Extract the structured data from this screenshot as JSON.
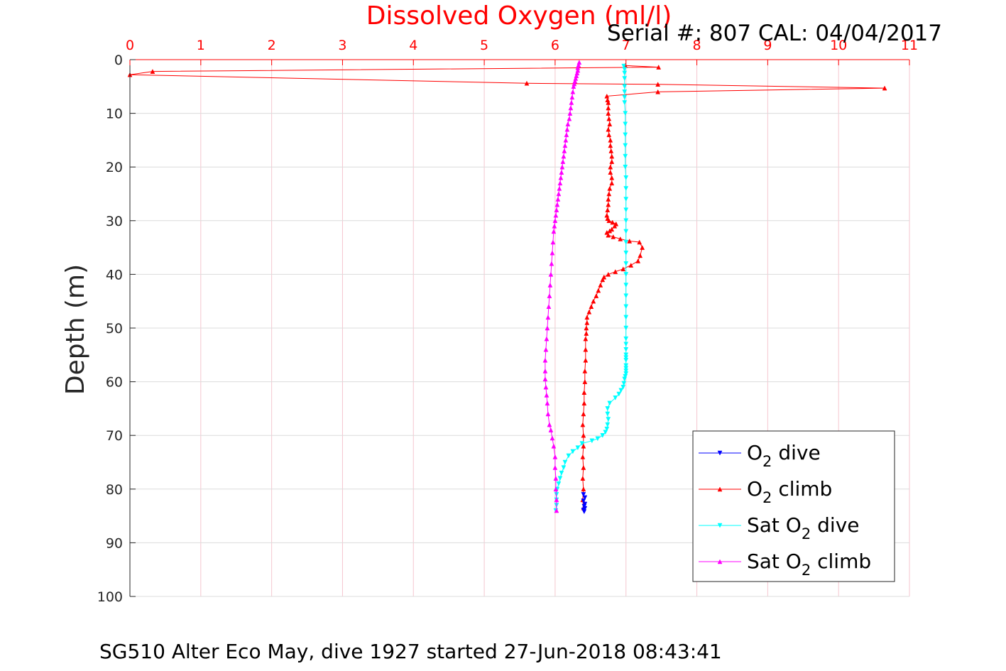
{
  "chart_data": {
    "type": "line",
    "title": "Dissolved Oxygen (ml/l)",
    "subtitle": "Serial #: 807  CAL: 04/04/2017",
    "caption": "SG510 Alter Eco May, dive 1927 started 27-Jun-2018 08:43:41",
    "xlabel": "Dissolved Oxygen (ml/l)",
    "ylabel": "Depth (m)",
    "xlim": [
      0,
      11
    ],
    "ylim": [
      0,
      100
    ],
    "y_reversed": true,
    "x_axis_position": "top",
    "grid": true,
    "legend_position": "bottom-right",
    "x_ticks": [
      0,
      1,
      2,
      3,
      4,
      5,
      6,
      7,
      8,
      9,
      10,
      11
    ],
    "y_ticks": [
      0,
      10,
      20,
      30,
      40,
      50,
      60,
      70,
      80,
      90,
      100
    ],
    "colors": {
      "title": "#ff0000",
      "x_ticks": "#ff0000",
      "grid": "#f5c6cf",
      "axis": "#262626"
    },
    "legend": [
      {
        "base": "O",
        "sub": "2",
        "suffix": " dive",
        "series": 0
      },
      {
        "base": "O",
        "sub": "2",
        "suffix": " climb",
        "series": 1
      },
      {
        "base": "Sat O",
        "sub": "2",
        "suffix": " dive",
        "series": 2
      },
      {
        "base": "Sat O",
        "sub": "2",
        "suffix": " climb",
        "series": 3
      }
    ],
    "series": [
      {
        "name": "O2 dive",
        "color": "#0000ff",
        "marker": "triangle-down",
        "x": [
          6.4,
          6.42,
          6.4,
          6.42,
          6.41,
          6.42,
          6.4,
          6.41
        ],
        "y": [
          81.0,
          81.6,
          82.2,
          82.8,
          83.2,
          83.6,
          83.9,
          84.2
        ]
      },
      {
        "name": "O2 climb",
        "color": "#ff0000",
        "marker": "triangle-up",
        "x": [
          6.4,
          6.39,
          6.4,
          6.39,
          6.4,
          6.39,
          6.4,
          6.4,
          6.39,
          6.4,
          6.41,
          6.41,
          6.42,
          6.42,
          6.43,
          6.43,
          6.43,
          6.44,
          6.44,
          6.45,
          6.45,
          6.48,
          6.51,
          6.54,
          6.58,
          6.61,
          6.64,
          6.67,
          6.69,
          6.75,
          6.85,
          6.96,
          7.07,
          7.17,
          7.2,
          7.23,
          7.19,
          7.05,
          6.92,
          6.82,
          6.75,
          6.73,
          6.77,
          6.8,
          6.84,
          6.86,
          6.81,
          6.76,
          6.74,
          6.73,
          6.74,
          6.75,
          6.75,
          6.76,
          6.77,
          6.8,
          6.8,
          6.78,
          6.78,
          6.8,
          6.8,
          6.79,
          6.78,
          6.78,
          6.76,
          6.75,
          6.77,
          6.76,
          6.75,
          6.75,
          6.75,
          6.74,
          6.73,
          7.45,
          10.65,
          7.45,
          5.6,
          0,
          0.32,
          7.46,
          6.99,
          6.99
        ],
        "y": [
          83.5,
          82,
          80,
          78,
          76,
          74,
          72,
          70,
          68,
          66,
          64,
          62,
          60,
          58,
          56,
          54,
          52,
          51,
          50,
          49,
          48,
          47,
          46,
          45,
          44,
          43,
          42,
          41,
          40.5,
          40,
          39.5,
          39,
          38.3,
          37.5,
          36.5,
          35,
          34,
          33.8,
          33.4,
          33,
          32.7,
          32.2,
          31.9,
          31.6,
          31,
          30.6,
          30.3,
          30,
          29.6,
          29,
          28,
          27,
          26,
          25,
          24,
          23,
          22,
          21,
          20,
          19,
          18,
          17,
          16,
          15,
          14,
          13,
          12,
          11,
          10,
          9,
          8,
          7.5,
          6.8,
          6,
          5.3,
          4.6,
          4.4,
          2.8,
          2.2,
          1.4,
          1.1,
          1.1
        ]
      },
      {
        "name": "Sat O2 dive",
        "color": "#00ffff",
        "marker": "triangle-down",
        "x": [
          6.97,
          6.98,
          6.98,
          6.98,
          6.98,
          6.98,
          6.98,
          6.98,
          6.99,
          6.99,
          6.99,
          6.99,
          6.99,
          6.99,
          7.0,
          7.0,
          7.0,
          7.0,
          7.0,
          7.0,
          7.0,
          7.0,
          7.0,
          7.0,
          7.0,
          7.0,
          7.0,
          7.0,
          7.0,
          7.0,
          7.0,
          7.0,
          7.0,
          7.0,
          7.0,
          7.0,
          7.0,
          7.0,
          7.0,
          6.99,
          6.98,
          6.97,
          6.96,
          6.93,
          6.9,
          6.85,
          6.77,
          6.74,
          6.74,
          6.75,
          6.74,
          6.73,
          6.71,
          6.67,
          6.6,
          6.52,
          6.38,
          6.32,
          6.25,
          6.19,
          6.14,
          6.12,
          6.09,
          6.07,
          6.05,
          6.03,
          6.02,
          6.02,
          6.02,
          6.01
        ],
        "y": [
          1.2,
          1.8,
          2.5,
          3.5,
          5,
          6,
          7,
          8,
          10,
          12,
          14,
          16,
          18,
          20,
          22,
          24,
          26,
          28,
          30,
          32,
          34,
          36,
          38,
          40,
          42,
          44,
          46,
          48,
          50,
          52,
          53,
          54,
          55,
          55.5,
          56,
          57,
          57.5,
          58,
          58.5,
          59,
          59.5,
          60.3,
          61,
          61.6,
          62.3,
          63,
          64,
          65,
          66,
          67,
          68,
          68.8,
          69.4,
          70,
          70.6,
          71,
          71.5,
          72.3,
          73,
          73.8,
          75,
          76,
          77,
          78,
          79,
          80,
          81,
          82,
          83,
          84
        ]
      },
      {
        "name": "Sat O2 climb",
        "color": "#ff00ff",
        "marker": "triangle-up",
        "x": [
          6.02,
          6.02,
          6.01,
          6.01,
          6.0,
          6.0,
          5.98,
          5.96,
          5.94,
          5.92,
          5.9,
          5.89,
          5.88,
          5.87,
          5.86,
          5.86,
          5.86,
          5.87,
          5.88,
          5.89,
          5.9,
          5.91,
          5.92,
          5.93,
          5.94,
          5.95,
          5.96,
          5.97,
          5.98,
          5.99,
          6.0,
          6.01,
          6.02,
          6.03,
          6.04,
          6.05,
          6.06,
          6.07,
          6.08,
          6.09,
          6.1,
          6.11,
          6.12,
          6.13,
          6.14,
          6.15,
          6.16,
          6.17,
          6.18,
          6.2,
          6.21,
          6.22,
          6.23,
          6.24,
          6.25,
          6.26,
          6.27,
          6.28,
          6.29,
          6.3,
          6.31,
          6.32,
          6.32,
          6.33,
          6.34
        ],
        "y": [
          84,
          82,
          80,
          78,
          76,
          74,
          72,
          70.5,
          69,
          68,
          66,
          64,
          62.5,
          61,
          59.5,
          58,
          56,
          54,
          52,
          50,
          48,
          46,
          44,
          42,
          40,
          38,
          36,
          34,
          32,
          31,
          30,
          29,
          28,
          27,
          26,
          25,
          24,
          23,
          22,
          21,
          20,
          19,
          18,
          17,
          16,
          15,
          14,
          13,
          12,
          11,
          10,
          9,
          8,
          7,
          6,
          5,
          4.5,
          4,
          3.5,
          3,
          2.5,
          2,
          1.5,
          1,
          0.5
        ]
      }
    ]
  }
}
